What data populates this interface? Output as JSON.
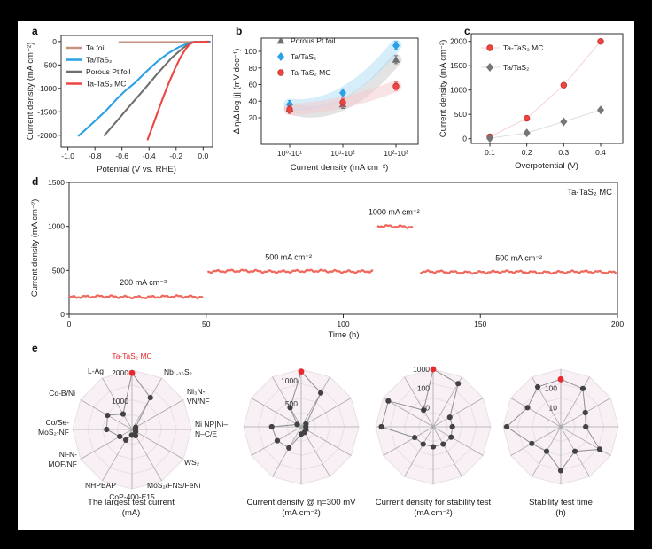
{
  "figure_bg": "#000000",
  "canvas_bg": "#ffffff",
  "radar_highlight": {
    "label": "Ta-TaS₂ MC",
    "color": "#e8282d"
  },
  "radar_axes": [
    [
      "Ta-TaS₂ MC"
    ],
    [
      "Nb₁.₃₅S₂"
    ],
    [
      "Ni₃N-",
      "VN/NF"
    ],
    [
      "Ni NP|Ni–",
      "N–C/E"
    ],
    [
      "WS₂"
    ],
    [
      "MoS₂/FNS/FeNi"
    ],
    [
      "CoP-400-E15"
    ],
    [
      "NHPBAP"
    ],
    [
      "NFN-",
      "MOF/NF"
    ],
    [
      "Co/Se-",
      "MoS₂-NF"
    ],
    [
      "Co-B/Ni"
    ],
    [
      "L-Ag"
    ]
  ],
  "chart_data": [
    {
      "id": "a",
      "letter": "a",
      "type": "line",
      "xlabel": "Potential (V vs. RHE)",
      "ylabel": "Current density (mA cm⁻²)",
      "xlim": [
        -1.05,
        0.07
      ],
      "ylim": [
        -2250,
        130
      ],
      "xticks": [
        -1.0,
        -0.8,
        -0.6,
        -0.4,
        -0.2,
        0.0
      ],
      "xtick_labels": [
        "-1.0",
        "-0.8",
        "-0.6",
        "-0.4",
        "-0.2",
        "0.0"
      ],
      "yticks": [
        0,
        -500,
        -1000,
        -1500,
        -2000
      ],
      "ytick_labels": [
        "0",
        "-500",
        "-1000",
        "-1500",
        "-2000"
      ],
      "series": [
        {
          "name": "Ta foil",
          "color": "#c69180",
          "points": [
            [
              -0.62,
              -12
            ],
            [
              -0.4,
              -12
            ],
            [
              -0.2,
              -10
            ],
            [
              0.05,
              -8
            ]
          ]
        },
        {
          "name": "Ta/TaS₂",
          "color": "#2aa0e5",
          "points": [
            [
              -0.92,
              -2010
            ],
            [
              -0.82,
              -1750
            ],
            [
              -0.72,
              -1480
            ],
            [
              -0.63,
              -1200
            ],
            [
              -0.58,
              -1060
            ],
            [
              -0.5,
              -870
            ],
            [
              -0.42,
              -640
            ],
            [
              -0.34,
              -430
            ],
            [
              -0.26,
              -255
            ],
            [
              -0.18,
              -120
            ],
            [
              -0.12,
              -45
            ],
            [
              -0.07,
              -8
            ],
            [
              0.05,
              0
            ]
          ]
        },
        {
          "name": "Porous Pt foil",
          "color": "#6f6f6f",
          "points": [
            [
              -0.73,
              -2000
            ],
            [
              -0.63,
              -1670
            ],
            [
              -0.53,
              -1330
            ],
            [
              -0.43,
              -1000
            ],
            [
              -0.33,
              -660
            ],
            [
              -0.23,
              -340
            ],
            [
              -0.15,
              -140
            ],
            [
              -0.1,
              -45
            ],
            [
              -0.06,
              -5
            ]
          ]
        },
        {
          "name": "Ta-TaS₂ MC",
          "color": "#ee4540",
          "points": [
            [
              -0.41,
              -2090
            ],
            [
              -0.37,
              -1780
            ],
            [
              -0.33,
              -1460
            ],
            [
              -0.29,
              -1150
            ],
            [
              -0.25,
              -860
            ],
            [
              -0.21,
              -590
            ],
            [
              -0.17,
              -350
            ],
            [
              -0.13,
              -160
            ],
            [
              -0.1,
              -60
            ],
            [
              -0.07,
              -10
            ],
            [
              0.04,
              0
            ]
          ]
        }
      ]
    },
    {
      "id": "b",
      "letter": "b",
      "type": "scatter-category",
      "xlabel": "Current density (mA cm⁻²)",
      "ylabel": "Δ η/Δ log |j| (mV dec⁻¹)",
      "categories": [
        "10⁰-10¹",
        "10¹-10²",
        "10²-10³"
      ],
      "yticks": [
        20,
        40,
        60,
        80,
        100
      ],
      "ytick_labels": [
        "20",
        "40",
        "60",
        "80",
        "100"
      ],
      "series": [
        {
          "name": "Porous Pt foil",
          "marker": "triangle",
          "color": "#6f6f6f",
          "band_color": "#cccccc",
          "values": [
            31,
            36,
            90
          ]
        },
        {
          "name": "Ta/TaS₂",
          "marker": "diamond",
          "color": "#2aa0e5",
          "band_color": "#b5def5",
          "values": [
            36,
            50,
            107
          ]
        },
        {
          "name": "Ta-TaS₂ MC",
          "marker": "circle",
          "color": "#ee4540",
          "band_color": "#f6ccd0",
          "values": [
            30,
            38.5,
            58
          ]
        }
      ]
    },
    {
      "id": "c",
      "letter": "c",
      "type": "scatter",
      "xlabel": "Overpotential (V)",
      "ylabel": "Current density (mA cm⁻²)",
      "xticks": [
        0.1,
        0.2,
        0.3,
        0.4
      ],
      "xtick_labels": [
        "0.1",
        "0.2",
        "0.3",
        "0.4"
      ],
      "yticks": [
        0,
        500,
        1000,
        1500,
        2000
      ],
      "ytick_labels": [
        "0",
        "500",
        "1000",
        "1500",
        "2000"
      ],
      "series": [
        {
          "name": "Ta-TaS₂ MC",
          "marker": "circle",
          "color": "#ee4540",
          "line_color": "#f5d2d5",
          "points": [
            [
              0.1,
              40
            ],
            [
              0.2,
              420
            ],
            [
              0.3,
              1100
            ],
            [
              0.4,
              2000
            ]
          ]
        },
        {
          "name": "Ta/TaS₂",
          "marker": "diamond",
          "color": "#767676",
          "line_color": "#dcdcdc",
          "points": [
            [
              0.1,
              10
            ],
            [
              0.2,
              120
            ],
            [
              0.3,
              350
            ],
            [
              0.4,
              590
            ]
          ]
        }
      ]
    },
    {
      "id": "d",
      "letter": "d",
      "type": "time-series",
      "xlabel": "Time (h)",
      "ylabel": "Current density (mA cm⁻²)",
      "annotation": "Ta-TaS₂ MC",
      "color": "#f0695e",
      "xticks": [
        0,
        50,
        100,
        150,
        200
      ],
      "xtick_labels": [
        "0",
        "50",
        "100",
        "150",
        "200"
      ],
      "yticks": [
        0,
        500,
        1000,
        1500
      ],
      "ytick_labels": [
        "0",
        "500",
        "1000",
        "1500"
      ],
      "segments": [
        {
          "t0": 0,
          "t1": 49,
          "level": 200,
          "label": "200 mA cm⁻²",
          "label_t": 27
        },
        {
          "t0": 50.5,
          "t1": 111,
          "level": 490,
          "label": "500 mA cm⁻²",
          "label_t": 80
        },
        {
          "t0": 112.5,
          "t1": 125.5,
          "level": 1000,
          "label": "1000 mA cm⁻²",
          "label_t": 118.5
        },
        {
          "t0": 128,
          "t1": 200,
          "level": 480,
          "label": "500 mA cm⁻²",
          "label_t": 164
        }
      ]
    },
    {
      "id": "e1",
      "letter": "e",
      "type": "radar",
      "title_lines": [
        "The largest test current",
        "(mA)"
      ],
      "scale": "linear",
      "min": 0,
      "max": 2100,
      "rings": [
        {
          "value": 1000,
          "label": "1000"
        },
        {
          "value": 2000,
          "label": "2000"
        }
      ],
      "values": [
        2000,
        1300,
        150,
        120,
        150,
        250,
        200,
        430,
        500,
        900,
        1000,
        630
      ],
      "show_labels": true
    },
    {
      "id": "e2",
      "type": "radar",
      "title_lines": [
        "Current density @ η=300 mV",
        "(mA cm⁻²)"
      ],
      "scale": "linear",
      "min": 0,
      "max": 1250,
      "rings": [
        {
          "value": 500,
          "label": "500"
        },
        {
          "value": 1000,
          "label": "1000"
        }
      ],
      "values": [
        1200,
        850,
        120,
        100,
        120,
        140,
        160,
        530,
        600,
        640,
        100,
        480
      ],
      "show_labels": false
    },
    {
      "id": "e3",
      "type": "radar",
      "title_lines": [
        "Current density for stability test",
        "(mA cm⁻²)"
      ],
      "scale": "log",
      "min": 1,
      "max": 1000,
      "rings": [
        {
          "value": 10,
          "label": "10"
        },
        {
          "value": 100,
          "label": "100"
        },
        {
          "value": 1000,
          "label": "1000"
        }
      ],
      "values": [
        1000,
        400,
        10,
        10,
        12,
        11,
        11,
        11,
        13,
        500,
        500,
        10
      ],
      "show_labels": false
    },
    {
      "id": "e4",
      "type": "radar",
      "title_lines": [
        "Stability test time",
        "(h)"
      ],
      "scale": "log",
      "min": 1,
      "max": 1000,
      "rings": [
        {
          "value": 10,
          "label": "10"
        },
        {
          "value": 100,
          "label": "100"
        }
      ],
      "values": [
        300,
        200,
        30,
        20,
        220,
        30,
        190,
        30,
        55,
        650,
        100,
        250
      ],
      "show_labels": false
    }
  ]
}
